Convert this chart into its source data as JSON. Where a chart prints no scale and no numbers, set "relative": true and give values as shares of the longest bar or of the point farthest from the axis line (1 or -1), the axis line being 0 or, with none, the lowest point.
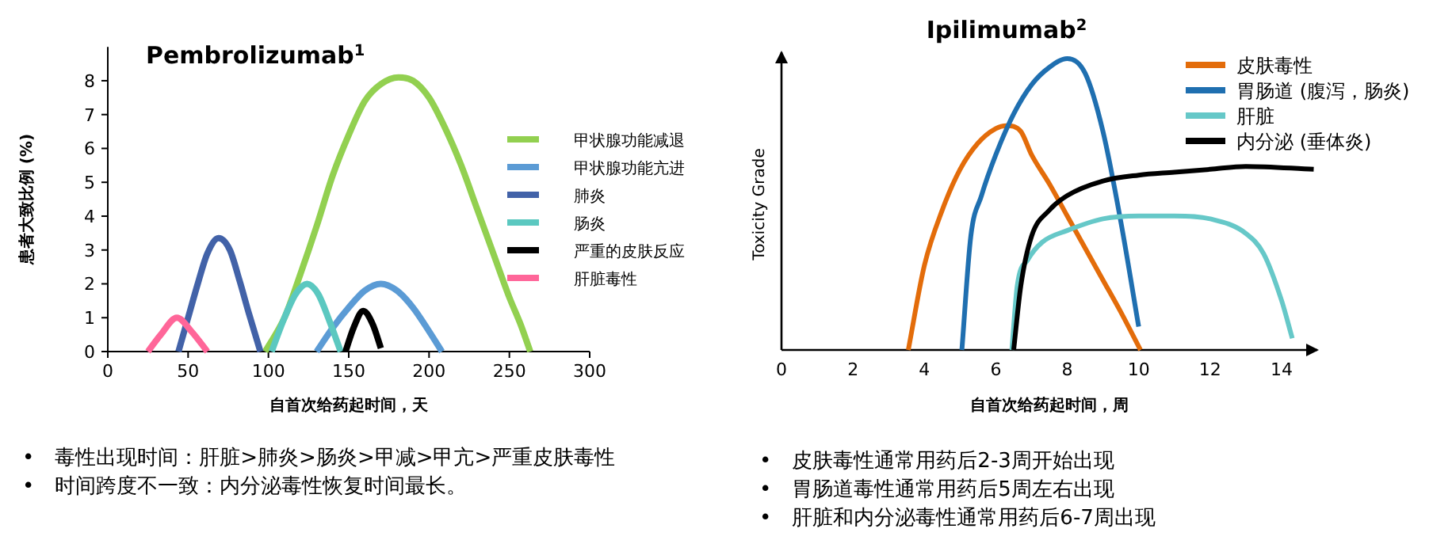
{
  "chart_data": [
    {
      "type": "line",
      "title": "Pembrolizumab$^{1}$",
      "xlabel": "自首次给药起时间，天",
      "ylabel": "患者大致比例 (%)",
      "xlim": [
        0,
        300
      ],
      "ylim": [
        0,
        9
      ],
      "xticks": [
        0,
        50,
        100,
        150,
        200,
        250,
        300
      ],
      "yticks": [
        0,
        1,
        2,
        3,
        4,
        5,
        6,
        7,
        8
      ],
      "legend": "right",
      "series": [
        {
          "name": "甲状腺功能减退",
          "color": "#92d050",
          "x": [
            98,
            110,
            120,
            130,
            140,
            150,
            160,
            170,
            181,
            190,
            200,
            210,
            220,
            230,
            240,
            250,
            257,
            263
          ],
          "values": [
            0,
            1.0,
            2.3,
            3.7,
            5.2,
            6.4,
            7.4,
            7.9,
            8.1,
            8.0,
            7.5,
            6.6,
            5.5,
            4.2,
            2.9,
            1.6,
            0.8,
            0
          ]
        },
        {
          "name": "甲状腺功能亢进",
          "color": "#5b9bd5",
          "x": [
            130,
            140,
            150,
            160,
            170,
            180,
            190,
            200,
            208
          ],
          "values": [
            0,
            0.7,
            1.3,
            1.8,
            2.0,
            1.8,
            1.3,
            0.6,
            0
          ]
        },
        {
          "name": "肺炎",
          "color": "#4262a8",
          "x": [
            44,
            50,
            56,
            62,
            69,
            76,
            82,
            88,
            95
          ],
          "values": [
            0,
            1.0,
            2.0,
            2.9,
            3.35,
            3.0,
            2.1,
            1.1,
            0
          ]
        },
        {
          "name": "肠炎",
          "color": "#5bc8c0",
          "x": [
            102,
            110,
            117,
            124,
            131,
            138,
            145
          ],
          "values": [
            0,
            1.0,
            1.7,
            2.0,
            1.7,
            0.9,
            0
          ]
        },
        {
          "name": "严重的皮肤反应",
          "color": "#000000",
          "x": [
            148,
            153,
            159,
            165,
            170
          ],
          "values": [
            0,
            0.7,
            1.2,
            0.8,
            0.1
          ]
        },
        {
          "name": "肝脏毒性",
          "color": "#ff6699",
          "x": [
            25,
            33,
            43,
            52,
            62
          ],
          "values": [
            0,
            0.5,
            1.0,
            0.6,
            0
          ]
        }
      ],
      "annotations": [
        "•　毒性出现时间：肝脏>肺炎>肠炎>甲减>甲亢>严重皮肤毒性",
        "•　时间跨度不一致：内分泌毒性恢复时间最长。"
      ]
    },
    {
      "type": "line",
      "title": "Ipilimumab$^{2}$",
      "xlabel": "自首次给药起时间，周",
      "ylabel": "Toxicity Grade",
      "relative": true,
      "xlim": [
        0,
        15
      ],
      "xticks": [
        0,
        2,
        4,
        6,
        8,
        10,
        12,
        14
      ],
      "legend": "top right",
      "series": [
        {
          "name": "皮肤毒性",
          "color": "#e36c0a",
          "x": [
            3.55,
            4.0,
            4.5,
            5.0,
            5.5,
            6.0,
            6.3,
            6.7,
            7.0,
            7.5,
            8.0,
            8.5,
            9.0,
            9.5,
            10.05
          ],
          "values": [
            0,
            0.29,
            0.48,
            0.62,
            0.71,
            0.76,
            0.77,
            0.75,
            0.67,
            0.57,
            0.46,
            0.35,
            0.24,
            0.13,
            0
          ]
        },
        {
          "name": "胃肠道 (腹泻，肠炎)",
          "color": "#1f6fb0",
          "x": [
            5.05,
            5.3,
            5.6,
            6.0,
            6.5,
            7.0,
            7.5,
            8.0,
            8.5,
            9.0,
            9.5,
            10.0
          ],
          "values": [
            0,
            0.39,
            0.53,
            0.67,
            0.81,
            0.91,
            0.97,
            1.0,
            0.95,
            0.75,
            0.44,
            0.08
          ]
        },
        {
          "name": "肝脏",
          "color": "#66c8c8",
          "x": [
            6.45,
            6.6,
            6.9,
            7.3,
            8,
            9,
            10,
            11,
            12,
            13,
            13.5,
            14,
            14.3
          ],
          "values": [
            0,
            0.22,
            0.31,
            0.37,
            0.41,
            0.45,
            0.46,
            0.46,
            0.45,
            0.4,
            0.33,
            0.17,
            0.04
          ]
        },
        {
          "name": "内分泌 (垂体炎)",
          "color": "#000000",
          "x": [
            6.5,
            6.7,
            7.0,
            7.5,
            8,
            9,
            10,
            11,
            12,
            13,
            14.9
          ],
          "values": [
            0,
            0.22,
            0.39,
            0.48,
            0.53,
            0.58,
            0.6,
            0.61,
            0.62,
            0.63,
            0.62
          ]
        }
      ],
      "annotations": [
        "•　皮肤毒性通常用药后2-3周开始出现",
        "•　胃肠道毒性通常用药后5周左右出现",
        "•　肝脏和内分泌毒性通常用药后6-7周出现"
      ]
    }
  ]
}
